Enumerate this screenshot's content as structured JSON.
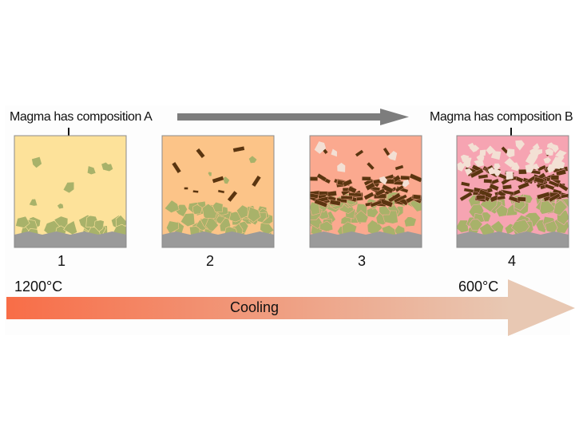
{
  "caption_left": "Magma has composition A",
  "caption_right": "Magma has composition B",
  "stages": [
    {
      "number": "1",
      "melt_color": "#fde29a"
    },
    {
      "number": "2",
      "melt_color": "#fcc488"
    },
    {
      "number": "3",
      "melt_color": "#fba98f"
    },
    {
      "number": "4",
      "melt_color": "#f6a4b2"
    }
  ],
  "temp_start": "1200°C",
  "temp_end": "600°C",
  "cooling_label": "Cooling",
  "colors": {
    "olivine": "#a8b26a",
    "pyroxene": "#5a3510",
    "feldspar": "#f3e0d4",
    "floor": "#9a9a9a",
    "time_arrow": "#7d7d7d",
    "cooling_start": "#f86d47",
    "cooling_end": "#e8c8b3"
  }
}
